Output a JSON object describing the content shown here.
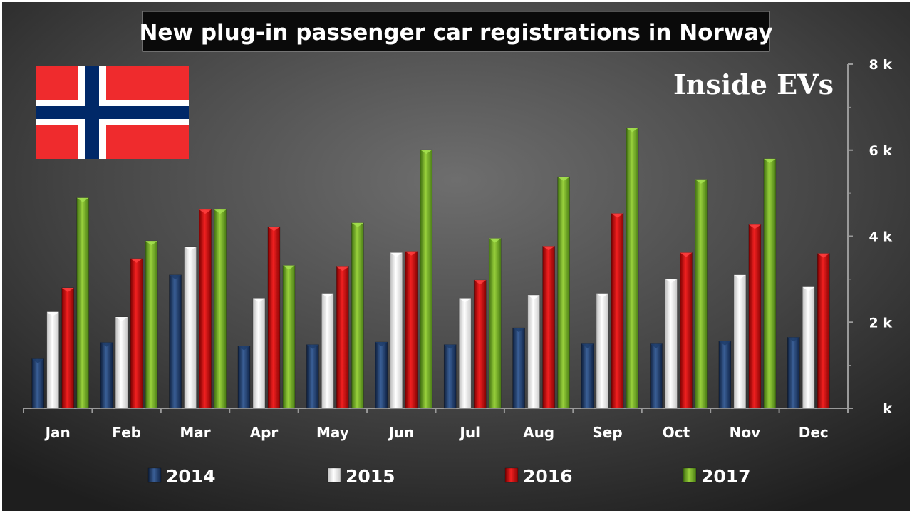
{
  "colors": {
    "2014": "#1f3d6b",
    "2015": "#f2f2f2",
    "2016": "#d50f0f",
    "2017": "#79b32a"
  },
  "watermark": "Inside EVs",
  "flag": "norway-flag",
  "chart_data": {
    "type": "bar",
    "title": "New plug-in passenger car registrations in Norway",
    "categories": [
      "Jan",
      "Feb",
      "Mar",
      "Apr",
      "May",
      "Jun",
      "Jul",
      "Aug",
      "Sep",
      "Oct",
      "Nov",
      "Dec"
    ],
    "series": [
      {
        "name": "2014",
        "values": [
          1150,
          1530,
          3100,
          1450,
          1480,
          1540,
          1480,
          1870,
          1500,
          1500,
          1560,
          1650
        ]
      },
      {
        "name": "2015",
        "values": [
          2240,
          2120,
          3760,
          2560,
          2670,
          3620,
          2560,
          2630,
          2670,
          3010,
          3100,
          2820
        ]
      },
      {
        "name": "2016",
        "values": [
          2800,
          3480,
          4620,
          4220,
          3290,
          3650,
          2980,
          3770,
          4530,
          3620,
          4270,
          3600
        ]
      },
      {
        "name": "2017",
        "values": [
          4890,
          3890,
          4620,
          3320,
          4310,
          6010,
          3950,
          5380,
          6520,
          5320,
          5800,
          null
        ]
      }
    ],
    "y_ticks": [
      "k",
      "2 k",
      "4 k",
      "6 k",
      "8 k"
    ],
    "ylim": [
      0,
      8000
    ],
    "xlabel": "",
    "ylabel": "",
    "grid": false,
    "legend_position": "bottom"
  }
}
